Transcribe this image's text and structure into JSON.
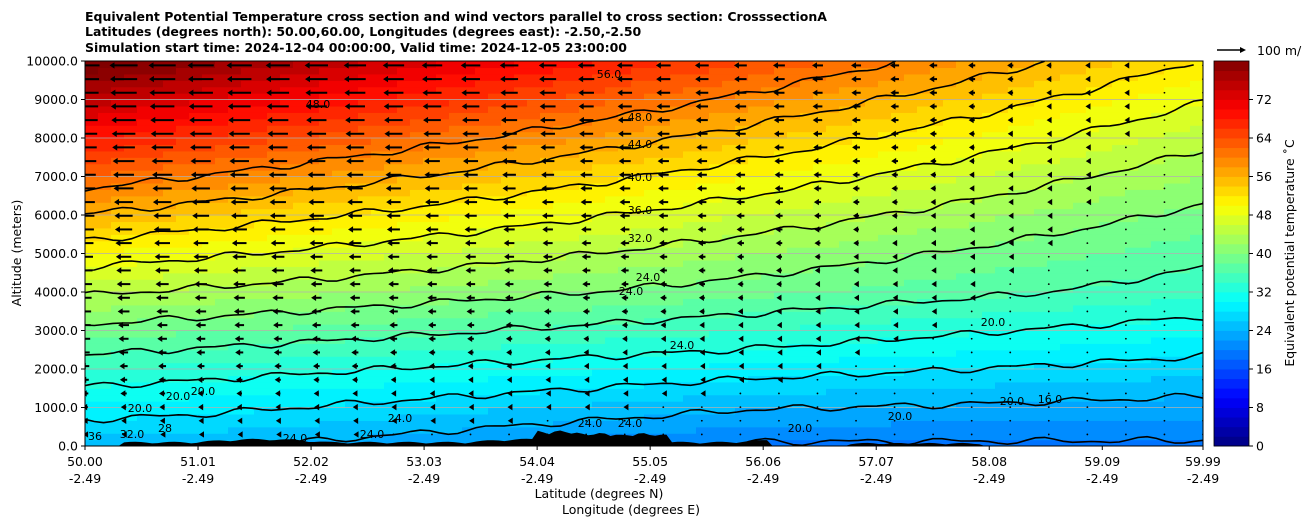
{
  "chart_data": {
    "type": "contour cross-section with wind vectors",
    "title_lines": [
      "Equivalent Potential Temperature cross section and wind vectors parallel to cross section: CrosssectionA",
      "Latitudes (degrees north): 50.00,60.00, Longitudes (degrees east): -2.50,-2.50",
      "Simulation start time: 2024-12-04 00:00:00, Valid time: 2024-12-05 23:00:00"
    ],
    "ylabel": "Altitude (meters)",
    "xlabel_lat": "Latitude (degrees N)",
    "xlabel_lon": "Longitude (degrees E)",
    "x_range": [
      50.0,
      59.99
    ],
    "y_range": [
      0,
      10000
    ],
    "x_ticks": [
      {
        "lat": "50.00",
        "lon": "-2.49",
        "value": 50.0
      },
      {
        "lat": "51.01",
        "lon": "-2.49",
        "value": 51.01
      },
      {
        "lat": "52.02",
        "lon": "-2.49",
        "value": 52.02
      },
      {
        "lat": "53.03",
        "lon": "-2.49",
        "value": 53.03
      },
      {
        "lat": "54.04",
        "lon": "-2.49",
        "value": 54.04
      },
      {
        "lat": "55.05",
        "lon": "-2.49",
        "value": 55.05
      },
      {
        "lat": "56.06",
        "lon": "-2.49",
        "value": 56.06
      },
      {
        "lat": "57.07",
        "lon": "-2.49",
        "value": 57.07
      },
      {
        "lat": "58.08",
        "lon": "-2.49",
        "value": 58.08
      },
      {
        "lat": "59.09",
        "lon": "-2.49",
        "value": 59.09
      },
      {
        "lat": "59.99",
        "lon": "-2.49",
        "value": 59.99
      }
    ],
    "y_ticks": [
      {
        "label": "0.0",
        "value": 0
      },
      {
        "label": "1000.0",
        "value": 1000
      },
      {
        "label": "2000.0",
        "value": 2000
      },
      {
        "label": "3000.0",
        "value": 3000
      },
      {
        "label": "4000.0",
        "value": 4000
      },
      {
        "label": "5000.0",
        "value": 5000
      },
      {
        "label": "6000.0",
        "value": 6000
      },
      {
        "label": "7000.0",
        "value": 7000
      },
      {
        "label": "8000.0",
        "value": 8000
      },
      {
        "label": "9000.0",
        "value": 9000
      },
      {
        "label": "10000.0",
        "value": 10000
      }
    ],
    "colorbar": {
      "label": "Equivalent potential temperature ˚C",
      "range": [
        0,
        80
      ],
      "ticks": [
        "0",
        "8",
        "16",
        "24",
        "32",
        "40",
        "48",
        "56",
        "64",
        "72"
      ],
      "tick_values": [
        0,
        8,
        16,
        24,
        32,
        40,
        48,
        56,
        64,
        72
      ],
      "colormap": [
        "#00007f",
        "#0000ff",
        "#007fff",
        "#00ffff",
        "#7fff7f",
        "#ffff00",
        "#ff7f00",
        "#ff0000",
        "#7f0000"
      ]
    },
    "quiver_key": "100 m/",
    "contour_levels": [
      16,
      20,
      24,
      28,
      32,
      36,
      40,
      44,
      48,
      52,
      56,
      60
    ],
    "contour_labels": [
      "56.0",
      "48.0",
      "48.0",
      "44.0",
      "40.0",
      "36.0",
      "32.0",
      "24.0",
      "24.0",
      "20.0",
      "24.0",
      "20.0",
      "20.0",
      "20.0",
      "16.0",
      "20.0",
      "20.0",
      "24.0",
      "24.0",
      "24.0",
      "24.0",
      "28",
      "32.0",
      "36",
      "20.0",
      "24.0"
    ],
    "grid": "horizontal gridlines"
  }
}
